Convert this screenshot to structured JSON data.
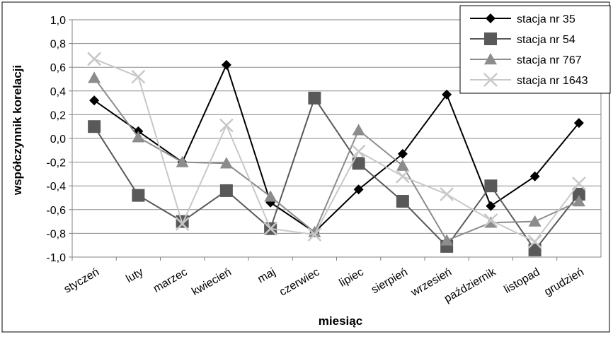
{
  "chart_data": {
    "type": "line",
    "title": "",
    "xlabel": "miesiąc",
    "ylabel": "współczynnik korelacji",
    "ylim": [
      -1.0,
      1.0
    ],
    "ytick_step": 0.2,
    "ytick_labels": [
      "1,0",
      "0,8",
      "0,6",
      "0,4",
      "0,2",
      "0,0",
      "-0,2",
      "-0,4",
      "-0,6",
      "-0,8",
      "-1,0"
    ],
    "grid": true,
    "legend_position": "top-right",
    "categories": [
      "styczeń",
      "luty",
      "marzec",
      "kwiecień",
      "maj",
      "czerwiec",
      "lipiec",
      "sierpień",
      "wrzesień",
      "październik",
      "listopad",
      "grudzień"
    ],
    "series": [
      {
        "name": "stacja nr 35",
        "color": "#000000",
        "marker": "diamond",
        "values": [
          0.32,
          0.06,
          -0.2,
          0.62,
          -0.54,
          -0.79,
          -0.43,
          -0.13,
          0.37,
          -0.57,
          -0.32,
          0.13
        ]
      },
      {
        "name": "stacja nr 54",
        "color": "#595959",
        "marker": "square",
        "values": [
          0.1,
          -0.48,
          -0.7,
          -0.44,
          -0.76,
          0.34,
          -0.21,
          -0.53,
          -0.91,
          -0.4,
          -0.94,
          -0.47
        ]
      },
      {
        "name": "stacja nr 767",
        "color": "#8c8c8c",
        "marker": "triangle",
        "values": [
          0.51,
          0.01,
          -0.2,
          -0.21,
          -0.49,
          -0.79,
          0.07,
          -0.23,
          -0.86,
          -0.71,
          -0.7,
          -0.53
        ]
      },
      {
        "name": "stacja nr 1643",
        "color": "#c8c8c8",
        "marker": "x",
        "values": [
          0.67,
          0.52,
          -0.72,
          0.11,
          -0.76,
          -0.81,
          -0.11,
          -0.32,
          -0.47,
          -0.69,
          -0.87,
          -0.38
        ]
      }
    ]
  }
}
